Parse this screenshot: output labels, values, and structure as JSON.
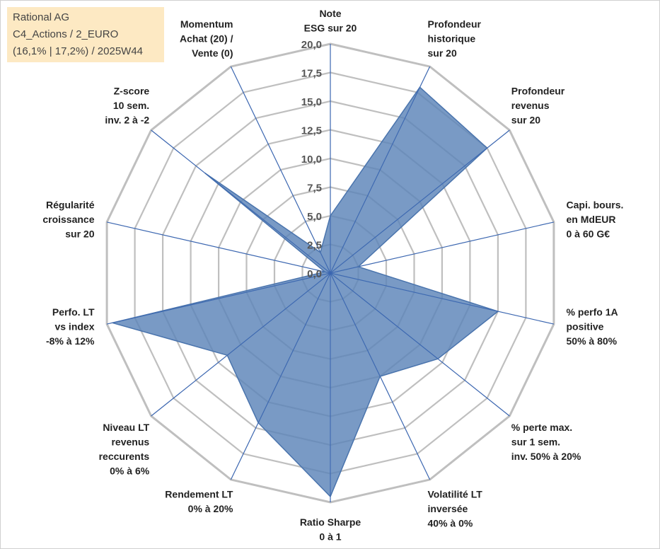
{
  "info": {
    "line1": "Rational AG",
    "line2": "C4_Actions / 2_EURO",
    "line3": "(16,1% | 17,2%) / 2025W44"
  },
  "colors": {
    "fill": "#5b84b8",
    "stroke": "#4a74ad",
    "grid": "#bfbfbf",
    "spoke": "#3b66b0"
  },
  "chart_data": {
    "type": "radar",
    "rmin": 0,
    "rmax": 20,
    "ticks": [
      "0,0",
      "2,5",
      "5,0",
      "7,5",
      "10,0",
      "12,5",
      "15,0",
      "17,5",
      "20,0"
    ],
    "axes": [
      {
        "label": [
          "Note",
          "ESG sur 20"
        ],
        "value": 5.0
      },
      {
        "label": [
          "Profondeur",
          "historique",
          "sur 20"
        ],
        "value": 18.0
      },
      {
        "label": [
          "Profondeur",
          "revenus",
          "sur 20"
        ],
        "value": 17.5
      },
      {
        "label": [
          "Capi. bours.",
          "en MdEUR",
          "0 à 60 G€"
        ],
        "value": 2.5
      },
      {
        "label": [
          "% perfo 1A",
          "positive",
          "50% à 80%"
        ],
        "value": 15.0
      },
      {
        "label": [
          "% perte max.",
          "sur 1 sem.",
          "inv. 50% à 20%"
        ],
        "value": 12.0
      },
      {
        "label": [
          "Volatilité LT",
          "inversée",
          "40% à 0%"
        ],
        "value": 10.0
      },
      {
        "label": [
          "Ratio Sharpe",
          "0 à 1"
        ],
        "value": 19.5
      },
      {
        "label": [
          "Rendement LT",
          "0% à 20%"
        ],
        "value": 14.5
      },
      {
        "label": [
          "Niveau LT",
          "revenus",
          "reccurents",
          "0% à 6%"
        ],
        "value": 11.5
      },
      {
        "label": [
          "Perfo. LT",
          "vs index",
          "-8% à 12%"
        ],
        "value": 19.5
      },
      {
        "label": [
          "Régularité",
          "croissance",
          "sur 20"
        ],
        "value": 0.5
      },
      {
        "label": [
          "Z-score",
          "10 sem.",
          "inv. 2 à -2"
        ],
        "value": 14.0
      },
      {
        "label": [
          "Momentum",
          "Achat (20) /",
          "Vente (0)"
        ],
        "value": 2.0
      }
    ]
  }
}
